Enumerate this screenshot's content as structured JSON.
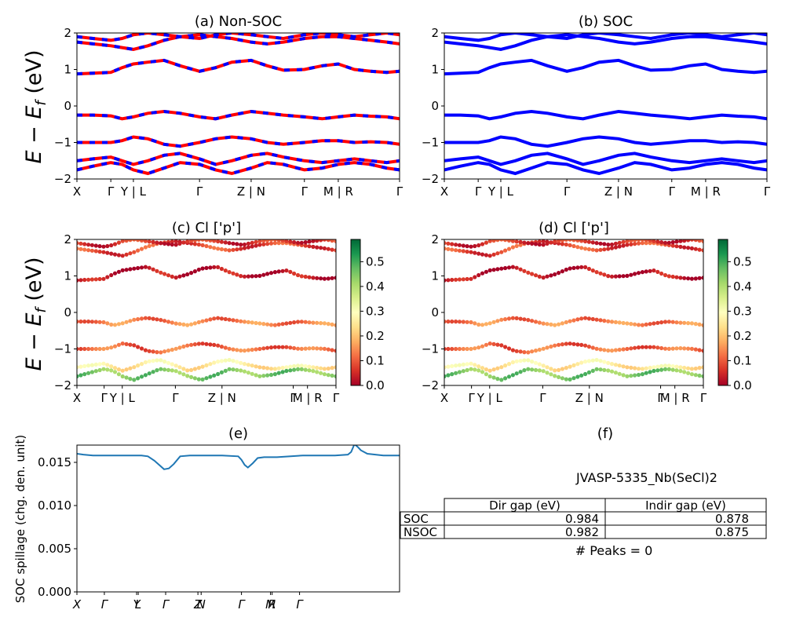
{
  "figure": {
    "panel_a_title": "(a) Non-SOC",
    "panel_b_title": "(b) SOC",
    "panel_c_title": "(c)  Cl ['p']",
    "panel_d_title": "(d) Cl ['p']",
    "panel_e_title": "(e)",
    "panel_f_title": "(f)",
    "energy_ylabel_main": "E − E",
    "energy_ylabel_sub": "f",
    "energy_ylabel_unit": " (eV)",
    "spillage_ylabel": "SOC spillage (chg. den. unit)"
  },
  "table": {
    "title": "JVASP-5335_Nb(SeCl)2",
    "headers": [
      "",
      "Dir gap (eV)",
      "Indir gap (eV)"
    ],
    "rows": [
      {
        "label": "SOC",
        "dir": "0.984",
        "indir": "0.878"
      },
      {
        "label": "NSOC",
        "dir": "0.982",
        "indir": "0.875"
      }
    ],
    "peaks_text": "# Peaks = 0"
  },
  "colors": {
    "nsoc_line": "#ff0000",
    "nsoc_dash": "#0000ff",
    "soc_line": "#0000ff",
    "spillage_line": "#1f77b4",
    "colormap": [
      "#a50026",
      "#d73027",
      "#f46d43",
      "#fdae61",
      "#fee08b",
      "#ffffbf",
      "#d9ef8b",
      "#a6d96a",
      "#66bd63",
      "#1a9850",
      "#006837"
    ]
  },
  "chart_data": [
    {
      "id": "a",
      "type": "line",
      "title": "(a) Non-SOC",
      "ylim": [
        -2,
        2
      ],
      "yticks": [
        -2,
        -1,
        0,
        1,
        2
      ],
      "xticklabels": [
        "X",
        "Γ",
        "Y | L",
        "Γ",
        "Z | N",
        "Γ",
        "M | R",
        "Γ"
      ],
      "xtick_pos": [
        0,
        0.105,
        0.175,
        0.38,
        0.54,
        0.705,
        0.81,
        1.0
      ],
      "x": [
        0,
        0.05,
        0.105,
        0.14,
        0.175,
        0.22,
        0.27,
        0.32,
        0.38,
        0.43,
        0.48,
        0.54,
        0.59,
        0.64,
        0.705,
        0.76,
        0.81,
        0.86,
        0.91,
        0.96,
        1.0
      ],
      "series": [
        {
          "values": [
            0.88,
            0.9,
            0.92,
            1.05,
            1.15,
            1.2,
            1.25,
            1.1,
            0.95,
            1.05,
            1.2,
            1.25,
            1.1,
            0.98,
            1.0,
            1.1,
            1.15,
            1.0,
            0.95,
            0.92,
            0.95
          ]
        },
        {
          "values": [
            1.75,
            1.7,
            1.65,
            1.6,
            1.55,
            1.65,
            1.8,
            1.9,
            1.95,
            1.9,
            1.85,
            1.75,
            1.7,
            1.75,
            1.85,
            1.9,
            1.9,
            1.85,
            1.8,
            1.75,
            1.7
          ]
        },
        {
          "values": [
            1.9,
            1.85,
            1.8,
            1.85,
            1.95,
            2.0,
            1.95,
            1.9,
            1.85,
            1.95,
            2.0,
            1.95,
            1.9,
            1.85,
            1.95,
            2.0,
            1.95,
            1.9,
            1.95,
            2.0,
            1.95
          ]
        },
        {
          "values": [
            -0.25,
            -0.25,
            -0.27,
            -0.35,
            -0.3,
            -0.2,
            -0.15,
            -0.2,
            -0.3,
            -0.35,
            -0.25,
            -0.15,
            -0.2,
            -0.25,
            -0.3,
            -0.35,
            -0.3,
            -0.25,
            -0.28,
            -0.3,
            -0.35
          ]
        },
        {
          "values": [
            -1.0,
            -1.0,
            -1.0,
            -0.95,
            -0.85,
            -0.9,
            -1.05,
            -1.1,
            -1.0,
            -0.9,
            -0.85,
            -0.9,
            -1.0,
            -1.05,
            -1.0,
            -0.95,
            -0.95,
            -1.0,
            -0.98,
            -1.0,
            -1.05
          ]
        },
        {
          "values": [
            -1.5,
            -1.45,
            -1.4,
            -1.5,
            -1.6,
            -1.5,
            -1.35,
            -1.3,
            -1.45,
            -1.6,
            -1.5,
            -1.35,
            -1.3,
            -1.4,
            -1.5,
            -1.55,
            -1.5,
            -1.45,
            -1.5,
            -1.55,
            -1.5
          ]
        },
        {
          "values": [
            -1.75,
            -1.65,
            -1.55,
            -1.6,
            -1.75,
            -1.85,
            -1.7,
            -1.55,
            -1.6,
            -1.75,
            -1.85,
            -1.7,
            -1.55,
            -1.6,
            -1.75,
            -1.7,
            -1.6,
            -1.55,
            -1.6,
            -1.7,
            -1.75
          ]
        }
      ]
    },
    {
      "id": "b",
      "type": "line",
      "title": "(b) SOC",
      "ylim": [
        -2,
        2
      ],
      "yticks": [
        -2,
        -1,
        0,
        1,
        2
      ],
      "xticklabels": [
        "X",
        "Γ",
        "Y | L",
        "Γ",
        "Z | N",
        "Γ",
        "M | R",
        "Γ"
      ],
      "xtick_pos": [
        0,
        0.105,
        0.175,
        0.38,
        0.54,
        0.705,
        0.81,
        1.0
      ],
      "x": [
        0,
        0.05,
        0.105,
        0.14,
        0.175,
        0.22,
        0.27,
        0.32,
        0.38,
        0.43,
        0.48,
        0.54,
        0.59,
        0.64,
        0.705,
        0.76,
        0.81,
        0.86,
        0.91,
        0.96,
        1.0
      ],
      "series": [
        {
          "values": [
            0.88,
            0.9,
            0.92,
            1.05,
            1.15,
            1.2,
            1.25,
            1.1,
            0.95,
            1.05,
            1.2,
            1.25,
            1.1,
            0.98,
            1.0,
            1.1,
            1.15,
            1.0,
            0.95,
            0.92,
            0.95
          ]
        },
        {
          "values": [
            1.75,
            1.7,
            1.65,
            1.6,
            1.55,
            1.65,
            1.8,
            1.9,
            1.95,
            1.9,
            1.85,
            1.75,
            1.7,
            1.75,
            1.85,
            1.9,
            1.9,
            1.85,
            1.8,
            1.75,
            1.7
          ]
        },
        {
          "values": [
            1.9,
            1.85,
            1.8,
            1.85,
            1.95,
            2.0,
            1.95,
            1.9,
            1.85,
            1.95,
            2.0,
            1.95,
            1.9,
            1.85,
            1.95,
            2.0,
            1.95,
            1.9,
            1.95,
            2.0,
            1.95
          ]
        },
        {
          "values": [
            -0.25,
            -0.25,
            -0.27,
            -0.35,
            -0.3,
            -0.2,
            -0.15,
            -0.2,
            -0.3,
            -0.35,
            -0.25,
            -0.15,
            -0.2,
            -0.25,
            -0.3,
            -0.35,
            -0.3,
            -0.25,
            -0.28,
            -0.3,
            -0.35
          ]
        },
        {
          "values": [
            -1.0,
            -1.0,
            -1.0,
            -0.95,
            -0.85,
            -0.9,
            -1.05,
            -1.1,
            -1.0,
            -0.9,
            -0.85,
            -0.9,
            -1.0,
            -1.05,
            -1.0,
            -0.95,
            -0.95,
            -1.0,
            -0.98,
            -1.0,
            -1.05
          ]
        },
        {
          "values": [
            -1.5,
            -1.45,
            -1.4,
            -1.5,
            -1.6,
            -1.5,
            -1.35,
            -1.3,
            -1.45,
            -1.6,
            -1.5,
            -1.35,
            -1.3,
            -1.4,
            -1.5,
            -1.55,
            -1.5,
            -1.45,
            -1.5,
            -1.55,
            -1.5
          ]
        },
        {
          "values": [
            -1.75,
            -1.65,
            -1.55,
            -1.6,
            -1.75,
            -1.85,
            -1.7,
            -1.55,
            -1.6,
            -1.75,
            -1.85,
            -1.7,
            -1.55,
            -1.6,
            -1.75,
            -1.7,
            -1.6,
            -1.55,
            -1.6,
            -1.7,
            -1.75
          ]
        }
      ]
    },
    {
      "id": "c",
      "type": "scatter",
      "title": "(c)  Cl ['p']",
      "ylim": [
        -2,
        2
      ],
      "yticks": [
        -2,
        -1,
        0,
        1,
        2
      ],
      "colorbar_ticks": [
        0.0,
        0.1,
        0.2,
        0.3,
        0.4,
        0.5
      ],
      "colorbar_range": [
        0,
        0.59
      ],
      "xticklabels": [
        "X",
        "Γ",
        "Y | L",
        "Γ",
        "Z | N",
        "Γ",
        "M | R",
        "Γ"
      ],
      "xtick_pos": [
        0,
        0.105,
        0.175,
        0.38,
        0.56,
        0.835,
        0.89,
        1.0
      ],
      "x": [
        0,
        0.05,
        0.105,
        0.14,
        0.175,
        0.22,
        0.27,
        0.32,
        0.38,
        0.43,
        0.48,
        0.54,
        0.59,
        0.64,
        0.705,
        0.76,
        0.81,
        0.86,
        0.91,
        0.96,
        1.0
      ],
      "series": [
        {
          "values": [
            0.88,
            0.9,
            0.92,
            1.05,
            1.15,
            1.2,
            1.25,
            1.1,
            0.95,
            1.05,
            1.2,
            1.25,
            1.1,
            0.98,
            1.0,
            1.1,
            1.15,
            1.0,
            0.95,
            0.92,
            0.95
          ],
          "weight": 0.02
        },
        {
          "values": [
            1.75,
            1.7,
            1.65,
            1.6,
            1.55,
            1.65,
            1.8,
            1.9,
            1.95,
            1.9,
            1.85,
            1.75,
            1.7,
            1.75,
            1.85,
            1.9,
            1.9,
            1.85,
            1.8,
            1.75,
            1.7
          ],
          "weight": 0.08
        },
        {
          "values": [
            1.9,
            1.85,
            1.8,
            1.85,
            1.95,
            2.0,
            1.95,
            1.9,
            1.85,
            1.95,
            2.0,
            1.95,
            1.9,
            1.85,
            1.95,
            2.0,
            1.95,
            1.9,
            1.95,
            2.0,
            1.95
          ],
          "weight": 0.06
        },
        {
          "values": [
            -0.25,
            -0.25,
            -0.27,
            -0.35,
            -0.3,
            -0.2,
            -0.15,
            -0.2,
            -0.3,
            -0.35,
            -0.25,
            -0.15,
            -0.2,
            -0.25,
            -0.3,
            -0.35,
            -0.3,
            -0.25,
            -0.28,
            -0.3,
            -0.35
          ],
          "weight": 0.13
        },
        {
          "values": [
            -1.0,
            -1.0,
            -1.0,
            -0.95,
            -0.85,
            -0.9,
            -1.05,
            -1.1,
            -1.0,
            -0.9,
            -0.85,
            -0.9,
            -1.0,
            -1.05,
            -1.0,
            -0.95,
            -0.95,
            -1.0,
            -0.98,
            -1.0,
            -1.05
          ],
          "weight": 0.11
        },
        {
          "values": [
            -1.5,
            -1.45,
            -1.4,
            -1.5,
            -1.6,
            -1.5,
            -1.35,
            -1.3,
            -1.45,
            -1.6,
            -1.5,
            -1.35,
            -1.3,
            -1.4,
            -1.5,
            -1.55,
            -1.5,
            -1.45,
            -1.5,
            -1.55,
            -1.5
          ],
          "weight": 0.26
        },
        {
          "values": [
            -1.75,
            -1.65,
            -1.55,
            -1.6,
            -1.75,
            -1.85,
            -1.7,
            -1.55,
            -1.6,
            -1.75,
            -1.85,
            -1.7,
            -1.55,
            -1.6,
            -1.75,
            -1.7,
            -1.6,
            -1.55,
            -1.6,
            -1.7,
            -1.75
          ],
          "weight": 0.45
        }
      ]
    },
    {
      "id": "d",
      "type": "scatter",
      "title": "(d) Cl ['p']",
      "ylim": [
        -2,
        2
      ],
      "yticks": [
        -2,
        -1,
        0,
        1,
        2
      ],
      "colorbar_ticks": [
        0.0,
        0.1,
        0.2,
        0.3,
        0.4,
        0.5
      ],
      "colorbar_range": [
        0,
        0.59
      ],
      "xticklabels": [
        "X",
        "Γ",
        "Y | L",
        "Γ",
        "Z | N",
        "Γ",
        "M | R",
        "Γ"
      ],
      "xtick_pos": [
        0,
        0.105,
        0.175,
        0.38,
        0.56,
        0.835,
        0.89,
        1.0
      ],
      "x": [
        0,
        0.05,
        0.105,
        0.14,
        0.175,
        0.22,
        0.27,
        0.32,
        0.38,
        0.43,
        0.48,
        0.54,
        0.59,
        0.64,
        0.705,
        0.76,
        0.81,
        0.86,
        0.91,
        0.96,
        1.0
      ],
      "series": [
        {
          "values": [
            0.88,
            0.9,
            0.92,
            1.05,
            1.15,
            1.2,
            1.25,
            1.1,
            0.95,
            1.05,
            1.2,
            1.25,
            1.1,
            0.98,
            1.0,
            1.1,
            1.15,
            1.0,
            0.95,
            0.92,
            0.95
          ],
          "weight": 0.02
        },
        {
          "values": [
            1.75,
            1.7,
            1.65,
            1.6,
            1.55,
            1.65,
            1.8,
            1.9,
            1.95,
            1.9,
            1.85,
            1.75,
            1.7,
            1.75,
            1.85,
            1.9,
            1.9,
            1.85,
            1.8,
            1.75,
            1.7
          ],
          "weight": 0.08
        },
        {
          "values": [
            1.9,
            1.85,
            1.8,
            1.85,
            1.95,
            2.0,
            1.95,
            1.9,
            1.85,
            1.95,
            2.0,
            1.95,
            1.9,
            1.85,
            1.95,
            2.0,
            1.95,
            1.9,
            1.95,
            2.0,
            1.95
          ],
          "weight": 0.06
        },
        {
          "values": [
            -0.25,
            -0.25,
            -0.27,
            -0.35,
            -0.3,
            -0.2,
            -0.15,
            -0.2,
            -0.3,
            -0.35,
            -0.25,
            -0.15,
            -0.2,
            -0.25,
            -0.3,
            -0.35,
            -0.3,
            -0.25,
            -0.28,
            -0.3,
            -0.35
          ],
          "weight": 0.13
        },
        {
          "values": [
            -1.0,
            -1.0,
            -1.0,
            -0.95,
            -0.85,
            -0.9,
            -1.05,
            -1.1,
            -1.0,
            -0.9,
            -0.85,
            -0.9,
            -1.0,
            -1.05,
            -1.0,
            -0.95,
            -0.95,
            -1.0,
            -0.98,
            -1.0,
            -1.05
          ],
          "weight": 0.11
        },
        {
          "values": [
            -1.5,
            -1.45,
            -1.4,
            -1.5,
            -1.6,
            -1.5,
            -1.35,
            -1.3,
            -1.45,
            -1.6,
            -1.5,
            -1.35,
            -1.3,
            -1.4,
            -1.5,
            -1.55,
            -1.5,
            -1.45,
            -1.5,
            -1.55,
            -1.5
          ],
          "weight": 0.26
        },
        {
          "values": [
            -1.75,
            -1.65,
            -1.55,
            -1.6,
            -1.75,
            -1.85,
            -1.7,
            -1.55,
            -1.6,
            -1.75,
            -1.85,
            -1.7,
            -1.55,
            -1.6,
            -1.75,
            -1.7,
            -1.6,
            -1.55,
            -1.6,
            -1.7,
            -1.75
          ],
          "weight": 0.45
        }
      ]
    },
    {
      "id": "e",
      "type": "line",
      "title": "(e)",
      "ylabel": "SOC spillage (chg. den. unit)",
      "ylim": [
        0,
        0.017
      ],
      "yticks": [
        0.0,
        0.005,
        0.01,
        0.015
      ],
      "yticklabels": [
        "0.000",
        "0.005",
        "0.010",
        "0.015"
      ],
      "xticklabels": [
        "X",
        "Γ",
        "Y",
        "L",
        "Γ",
        "Z",
        "N",
        "Γ",
        "M",
        "R",
        "Γ"
      ],
      "xtick_pos": [
        0,
        0.085,
        0.185,
        0.19,
        0.275,
        0.375,
        0.385,
        0.51,
        0.6,
        0.605,
        0.69
      ],
      "x": [
        0,
        0.02,
        0.05,
        0.1,
        0.15,
        0.2,
        0.22,
        0.24,
        0.255,
        0.27,
        0.285,
        0.3,
        0.32,
        0.35,
        0.4,
        0.45,
        0.5,
        0.51,
        0.52,
        0.53,
        0.545,
        0.56,
        0.58,
        0.62,
        0.7,
        0.75,
        0.8,
        0.84,
        0.85,
        0.86,
        0.87,
        0.88,
        0.9,
        0.95,
        1.0
      ],
      "series": [
        {
          "name": "",
          "values": [
            0.016,
            0.0159,
            0.0158,
            0.0158,
            0.0158,
            0.0158,
            0.0157,
            0.0152,
            0.0147,
            0.0142,
            0.0143,
            0.0148,
            0.0157,
            0.0158,
            0.0158,
            0.0158,
            0.0157,
            0.0153,
            0.0147,
            0.0144,
            0.0149,
            0.0155,
            0.0156,
            0.0156,
            0.0158,
            0.0158,
            0.0158,
            0.0159,
            0.0162,
            0.0171,
            0.0168,
            0.0164,
            0.016,
            0.0158,
            0.0158
          ]
        }
      ]
    }
  ]
}
